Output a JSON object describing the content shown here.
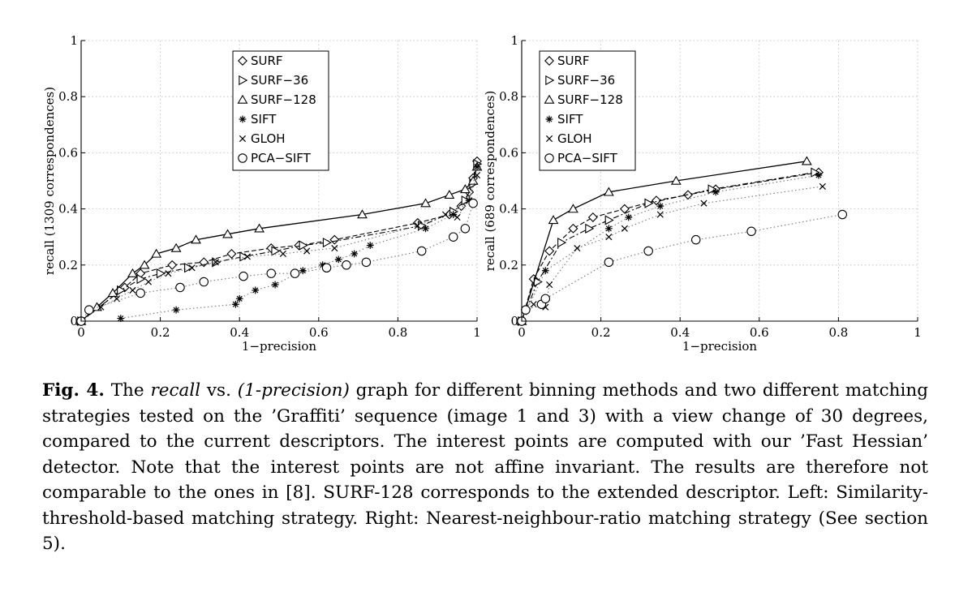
{
  "figure": {
    "caption": {
      "label": "Fig. 4.",
      "seg1": " The ",
      "italic1": "recall",
      "seg2": " vs. ",
      "italic2": "(1-precision)",
      "seg3": " graph for different binning methods and two different matching strategies tested on the ’Graffiti’ sequence (image 1 and 3) with a view change of 30 degrees, compared to the current descriptors. The interest points are computed with our ’Fast Hessian’ detector. Note that the interest points are not affine invariant. The results are therefore not comparable to the ones in [8]. SURF-128 corresponds to the extended descriptor. Left: Similarity-threshold-based matching strategy. Right: Nearest-neighbour-ratio matching strategy (See section 5)."
    }
  },
  "chart_data": [
    {
      "type": "line",
      "xlabel": "1−precision",
      "ylabel": "recall (1309 correspondences)",
      "xlim": [
        0,
        1
      ],
      "ylim": [
        0,
        1
      ],
      "xticks": [
        "0",
        "0.2",
        "0.4",
        "0.6",
        "0.8",
        "1"
      ],
      "yticks": [
        "0",
        "0.2",
        "0.4",
        "0.6",
        "0.8",
        "1"
      ],
      "grid": true,
      "legend_position": "top-center",
      "series": [
        {
          "name": "SURF",
          "marker": "diamond",
          "line": "dashed",
          "x": [
            0.0,
            0.11,
            0.15,
            0.23,
            0.31,
            0.38,
            0.48,
            0.55,
            0.64,
            0.85,
            0.93,
            0.96,
            0.98,
            0.99,
            1.0
          ],
          "y": [
            0.0,
            0.12,
            0.17,
            0.2,
            0.21,
            0.24,
            0.26,
            0.27,
            0.29,
            0.35,
            0.38,
            0.41,
            0.46,
            0.51,
            0.57
          ]
        },
        {
          "name": "SURF-36",
          "marker": "triangle-right",
          "line": "dashdot",
          "x": [
            0.0,
            0.1,
            0.15,
            0.2,
            0.27,
            0.34,
            0.41,
            0.49,
            0.56,
            0.62,
            0.86,
            0.94,
            0.97,
            0.99,
            1.0
          ],
          "y": [
            0.0,
            0.11,
            0.15,
            0.17,
            0.19,
            0.21,
            0.23,
            0.25,
            0.27,
            0.28,
            0.34,
            0.39,
            0.43,
            0.49,
            0.56
          ]
        },
        {
          "name": "SURF-128",
          "marker": "triangle-up",
          "line": "solid",
          "x": [
            0.0,
            0.04,
            0.08,
            0.13,
            0.16,
            0.19,
            0.24,
            0.29,
            0.37,
            0.45,
            0.71,
            0.87,
            0.93,
            0.97,
            0.99,
            1.0
          ],
          "y": [
            0.0,
            0.05,
            0.1,
            0.17,
            0.2,
            0.24,
            0.26,
            0.29,
            0.31,
            0.33,
            0.38,
            0.42,
            0.45,
            0.47,
            0.5,
            0.55
          ]
        },
        {
          "name": "SIFT",
          "marker": "asterisk",
          "line": "dotted",
          "x": [
            0.1,
            0.24,
            0.39,
            0.4,
            0.44,
            0.49,
            0.56,
            0.61,
            0.65,
            0.69,
            0.73,
            0.87,
            0.94,
            0.98,
            1.0
          ],
          "y": [
            0.01,
            0.04,
            0.06,
            0.08,
            0.11,
            0.13,
            0.18,
            0.2,
            0.22,
            0.24,
            0.27,
            0.33,
            0.38,
            0.43,
            0.55
          ]
        },
        {
          "name": "GLOH",
          "marker": "x",
          "line": "dotted",
          "x": [
            0.0,
            0.05,
            0.09,
            0.13,
            0.17,
            0.22,
            0.28,
            0.34,
            0.42,
            0.51,
            0.57,
            0.64,
            0.85,
            0.92,
            0.95,
            0.98,
            1.0
          ],
          "y": [
            0.0,
            0.05,
            0.08,
            0.11,
            0.14,
            0.17,
            0.19,
            0.21,
            0.23,
            0.24,
            0.25,
            0.26,
            0.34,
            0.38,
            0.37,
            0.43,
            0.52
          ]
        },
        {
          "name": "PCA-SIFT",
          "marker": "circle",
          "line": "dotted",
          "x": [
            0.0,
            0.02,
            0.15,
            0.25,
            0.31,
            0.41,
            0.48,
            0.54,
            0.62,
            0.67,
            0.72,
            0.86,
            0.94,
            0.97,
            0.99
          ],
          "y": [
            0.0,
            0.04,
            0.1,
            0.12,
            0.14,
            0.16,
            0.17,
            0.17,
            0.19,
            0.2,
            0.21,
            0.25,
            0.3,
            0.33,
            0.42
          ]
        }
      ]
    },
    {
      "type": "line",
      "xlabel": "1−precision",
      "ylabel": "recall (689 correspondences)",
      "xlim": [
        0,
        1
      ],
      "ylim": [
        0,
        1
      ],
      "xticks": [
        "0",
        "0.2",
        "0.4",
        "0.6",
        "0.8",
        "1"
      ],
      "yticks": [
        "0",
        "0.2",
        "0.4",
        "0.6",
        "0.8",
        "1"
      ],
      "grid": true,
      "legend_position": "top-left",
      "series": [
        {
          "name": "SURF",
          "marker": "diamond",
          "line": "dashed",
          "x": [
            0.0,
            0.03,
            0.07,
            0.13,
            0.18,
            0.26,
            0.34,
            0.42,
            0.49,
            0.75
          ],
          "y": [
            0.0,
            0.15,
            0.25,
            0.33,
            0.37,
            0.4,
            0.43,
            0.45,
            0.47,
            0.53
          ]
        },
        {
          "name": "SURF-36",
          "marker": "triangle-right",
          "line": "dashdot",
          "x": [
            0.0,
            0.04,
            0.1,
            0.17,
            0.22,
            0.32,
            0.48,
            0.74
          ],
          "y": [
            0.0,
            0.14,
            0.28,
            0.33,
            0.36,
            0.42,
            0.47,
            0.53
          ]
        },
        {
          "name": "SURF-128",
          "marker": "triangle-up",
          "line": "solid",
          "x": [
            0.0,
            0.08,
            0.13,
            0.22,
            0.39,
            0.72
          ],
          "y": [
            0.0,
            0.36,
            0.4,
            0.46,
            0.5,
            0.57
          ]
        },
        {
          "name": "SIFT",
          "marker": "asterisk",
          "line": "dotted",
          "x": [
            0.0,
            0.06,
            0.22,
            0.27,
            0.35,
            0.49,
            0.75
          ],
          "y": [
            0.0,
            0.18,
            0.33,
            0.37,
            0.41,
            0.46,
            0.52
          ]
        },
        {
          "name": "GLOH",
          "marker": "x",
          "line": "dotted",
          "x": [
            0.0,
            0.03,
            0.06,
            0.07,
            0.14,
            0.22,
            0.26,
            0.35,
            0.46,
            0.76
          ],
          "y": [
            0.0,
            0.06,
            0.05,
            0.13,
            0.26,
            0.3,
            0.33,
            0.38,
            0.42,
            0.48
          ]
        },
        {
          "name": "PCA-SIFT",
          "marker": "circle",
          "line": "dotted",
          "x": [
            0.0,
            0.01,
            0.05,
            0.06,
            0.22,
            0.32,
            0.44,
            0.58,
            0.81
          ],
          "y": [
            0.0,
            0.04,
            0.06,
            0.08,
            0.21,
            0.25,
            0.29,
            0.32,
            0.38
          ]
        }
      ]
    }
  ]
}
